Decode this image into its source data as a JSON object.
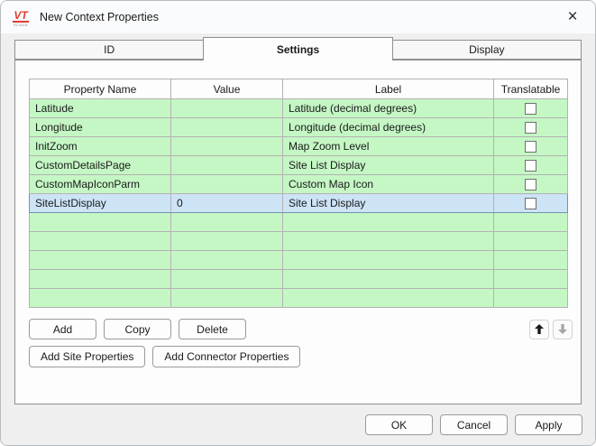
{
  "window": {
    "title": "New Context Properties",
    "logo": {
      "text": "VT",
      "sub": "SCADA"
    },
    "close_glyph": "×"
  },
  "tabs": [
    {
      "label": "ID",
      "active": false
    },
    {
      "label": "Settings",
      "active": true
    },
    {
      "label": "Display",
      "active": false
    }
  ],
  "table": {
    "columns": [
      "Property Name",
      "Value",
      "Label",
      "Translatable"
    ],
    "rows": [
      {
        "property": "Latitude",
        "value": "",
        "label": "Latitude (decimal degrees)",
        "translatable": false,
        "selected": false
      },
      {
        "property": "Longitude",
        "value": "",
        "label": "Longitude (decimal degrees)",
        "translatable": false,
        "selected": false
      },
      {
        "property": "InitZoom",
        "value": "",
        "label": "Map Zoom Level",
        "translatable": false,
        "selected": false
      },
      {
        "property": "CustomDetailsPage",
        "value": "",
        "label": "Site List Display",
        "translatable": false,
        "selected": false
      },
      {
        "property": "CustomMapIconParm",
        "value": "",
        "label": "Custom Map Icon",
        "translatable": false,
        "selected": false
      },
      {
        "property": "SiteListDisplay",
        "value": "0",
        "label": "Site List Display",
        "translatable": false,
        "selected": true
      }
    ],
    "empty_row_count": 5
  },
  "buttons": {
    "add": "Add",
    "copy": "Copy",
    "delete": "Delete",
    "add_site": "Add Site Properties",
    "add_connector": "Add Connector Properties",
    "ok": "OK",
    "cancel": "Cancel",
    "apply": "Apply"
  },
  "colors": {
    "row_green": "#c5f7c5",
    "row_selected": "#cde3f6",
    "row_selected_border": "#6f94b5",
    "logo_red": "#e03c31"
  }
}
